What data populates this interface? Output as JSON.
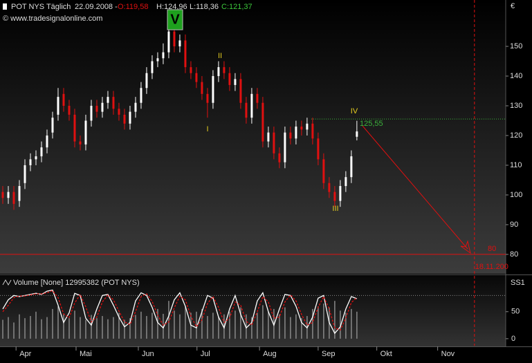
{
  "chart_data": [
    {
      "type": "candlestick",
      "title": "POT NYS Täglich",
      "subtitle": "© www.tradesignalonline.com",
      "date": "22.09.2008 -",
      "ohlc_labels": [
        "O:119,58",
        "H:124,96",
        "L:118,36",
        "C:121,37"
      ],
      "unit": "€",
      "open": [
        101,
        99,
        101,
        98,
        104,
        110,
        112,
        113,
        116,
        121,
        127,
        134,
        130,
        127,
        118,
        117,
        125,
        130,
        128,
        131,
        133,
        129,
        127,
        124,
        128,
        131,
        136,
        141,
        145,
        146,
        148,
        155,
        150,
        152,
        143,
        141,
        138,
        134,
        131,
        140,
        143,
        141,
        137,
        139,
        131,
        126,
        134,
        131,
        118,
        121,
        114,
        111,
        121,
        119,
        123,
        122,
        124,
        119,
        112,
        104,
        101,
        98,
        103,
        106,
        119.58
      ],
      "high": [
        103,
        103,
        103,
        105,
        112,
        114,
        115,
        118,
        122,
        128,
        136,
        136,
        132,
        129,
        120,
        127,
        132,
        132,
        133,
        135,
        135,
        131,
        129,
        130,
        133,
        138,
        143,
        147,
        148,
        151,
        158,
        157,
        154,
        154,
        145,
        143,
        140,
        136,
        142,
        145,
        145,
        143,
        141,
        141,
        133,
        136,
        136,
        133,
        123,
        123,
        116,
        123,
        123,
        125,
        125,
        126,
        126,
        121,
        114,
        106,
        103,
        105,
        108,
        115,
        124.96
      ],
      "low": [
        97,
        97,
        95,
        96,
        102,
        108,
        110,
        111,
        114,
        119,
        125,
        128,
        125,
        116,
        115,
        115,
        123,
        126,
        126,
        129,
        127,
        125,
        122,
        122,
        126,
        129,
        134,
        139,
        143,
        144,
        146,
        148,
        148,
        141,
        139,
        136,
        132,
        126,
        129,
        138,
        139,
        135,
        135,
        129,
        124,
        124,
        129,
        116,
        116,
        112,
        109,
        109,
        117,
        117,
        120,
        120,
        117,
        110,
        102,
        99,
        96,
        96,
        101,
        104,
        118.36
      ],
      "close": [
        99,
        101,
        97,
        103,
        110,
        112,
        113,
        116,
        120,
        126,
        133,
        130,
        127,
        118,
        117,
        125,
        130,
        128,
        131,
        133,
        129,
        127,
        124,
        128,
        131,
        136,
        141,
        145,
        146,
        148,
        155,
        150,
        152,
        143,
        141,
        138,
        134,
        131,
        140,
        143,
        141,
        137,
        139,
        131,
        126,
        134,
        131,
        118,
        121,
        114,
        111,
        121,
        119,
        123,
        122,
        124,
        119,
        112,
        104,
        101,
        98,
        103,
        106,
        113,
        121.37
      ],
      "colors": {
        "up": "#ffffff",
        "down": "#e01010"
      },
      "xlim": [
        -0.5,
        90.9
      ],
      "xticks": [
        {
          "value": 2.4,
          "label": "Apr"
        },
        {
          "value": 13.25,
          "label": "Mai"
        },
        {
          "value": 24.5,
          "label": "Jun"
        },
        {
          "value": 35.1,
          "label": "Jul"
        },
        {
          "value": 46.4,
          "label": "Aug"
        },
        {
          "value": 57,
          "label": "Sep"
        },
        {
          "value": 67.6,
          "label": "Okt"
        },
        {
          "value": 78.6,
          "label": "Nov"
        }
      ],
      "ylim": [
        73.7,
        165.6
      ],
      "yticks": [
        80,
        90,
        100,
        110,
        120,
        130,
        140,
        150
      ],
      "hlines": [
        {
          "value": 80,
          "color": "#e01010"
        },
        {
          "value": {
            "value": 125.55,
            "label": "125,55"
          },
          "color": "#3cb43c"
        }
      ],
      "vline": {
        "value": 85.25,
        "label": "18.11.200",
        "color": "#e01010"
      },
      "annotations": [
        "V",
        "II",
        "I",
        "IV",
        "III"
      ]
    },
    {
      "type": "oscillator",
      "title": "Volume [None] 12995382 (POT NYS)",
      "axis_label": "SS1",
      "ylim": [
        -13,
        115
      ],
      "yticks": [
        0,
        50
      ],
      "hlines": [
        {
          "value": 80
        }
      ],
      "bars": [
        35,
        40,
        30,
        45,
        38,
        42,
        50,
        36,
        40,
        55,
        60,
        45,
        38,
        52,
        40,
        35,
        44,
        38,
        42,
        36,
        40,
        48,
        35,
        38,
        44,
        50,
        42,
        48,
        55,
        46,
        70,
        52,
        45,
        60,
        48,
        50,
        55,
        42,
        48,
        40,
        45,
        50,
        52,
        58,
        45,
        40,
        48,
        62,
        50,
        55,
        45,
        58,
        40,
        45,
        38,
        42,
        55,
        60,
        65,
        58,
        70,
        52,
        48,
        55,
        50
      ],
      "lines": [
        {
          "color": "#ffffff",
          "values": [
            55,
            72,
            80,
            78,
            80,
            82,
            84,
            82,
            88,
            90,
            62,
            30,
            48,
            84,
            80,
            38,
            25,
            55,
            80,
            82,
            62,
            40,
            22,
            30,
            70,
            85,
            80,
            58,
            30,
            20,
            42,
            72,
            85,
            60,
            25,
            20,
            50,
            80,
            75,
            40,
            20,
            55,
            80,
            45,
            20,
            30,
            70,
            85,
            50,
            25,
            55,
            82,
            80,
            60,
            30,
            20,
            40,
            75,
            80,
            30,
            10,
            22,
            55,
            78,
            74
          ]
        },
        {
          "color": "#e01010",
          "dash": true,
          "values": [
            50,
            62,
            76,
            79,
            79,
            81,
            83,
            83,
            85,
            89,
            76,
            46,
            39,
            66,
            82,
            59,
            31,
            40,
            68,
            81,
            72,
            51,
            31,
            26,
            50,
            78,
            83,
            69,
            44,
            25,
            31,
            57,
            79,
            72,
            42,
            22,
            35,
            65,
            78,
            58,
            30,
            38,
            68,
            62,
            32,
            25,
            50,
            78,
            68,
            38,
            40,
            68,
            81,
            70,
            45,
            25,
            30,
            58,
            78,
            55,
            20,
            16,
            38,
            67,
            76
          ]
        }
      ]
    }
  ]
}
